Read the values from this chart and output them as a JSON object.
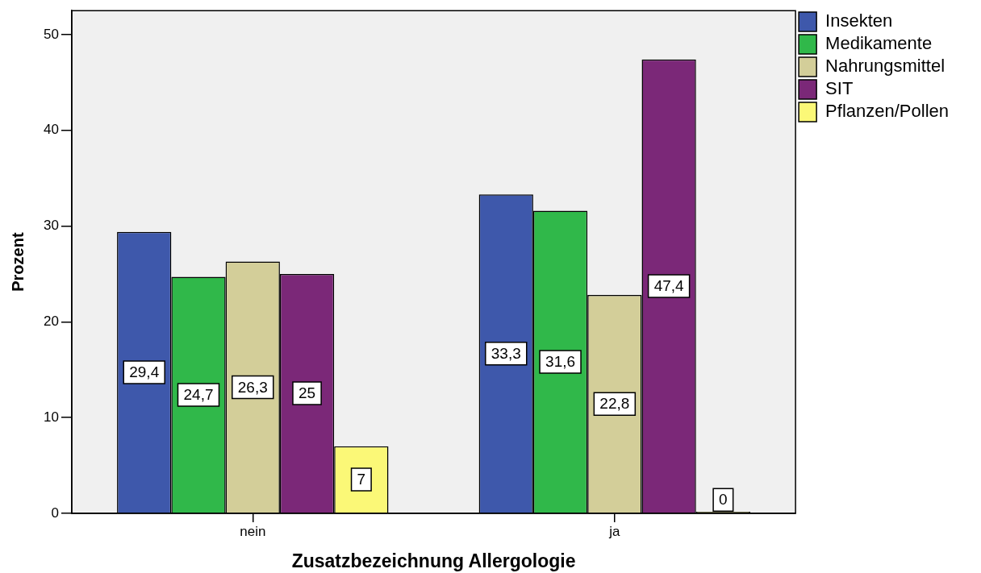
{
  "chart_data": {
    "type": "bar",
    "categories": [
      "nein",
      "ja"
    ],
    "xlabel": "Zusatzbezeichnung Allergologie",
    "ylabel": "Prozent",
    "series": [
      {
        "name": "Insekten",
        "color": "#3e58ab",
        "values": [
          29.4,
          33.3
        ],
        "value_labels": [
          "29,4",
          "33,3"
        ]
      },
      {
        "name": "Medikamente",
        "color": "#30b84a",
        "values": [
          24.7,
          31.6
        ],
        "value_labels": [
          "24,7",
          "31,6"
        ]
      },
      {
        "name": "Nahrungsmittel",
        "color": "#d3ce99",
        "values": [
          26.3,
          22.8
        ],
        "value_labels": [
          "26,3",
          "22,8"
        ]
      },
      {
        "name": "SIT",
        "color": "#7b2878",
        "values": [
          25,
          47.4
        ],
        "value_labels": [
          "25",
          "47,4"
        ]
      },
      {
        "name": "Pflanzen/Pollen",
        "color": "#fbf877",
        "values": [
          7,
          0
        ],
        "value_labels": [
          "7",
          "0"
        ]
      }
    ],
    "ylim": [
      0,
      52.5
    ],
    "yticks": [
      0,
      10,
      20,
      30,
      40,
      50
    ],
    "legend": "top right"
  }
}
